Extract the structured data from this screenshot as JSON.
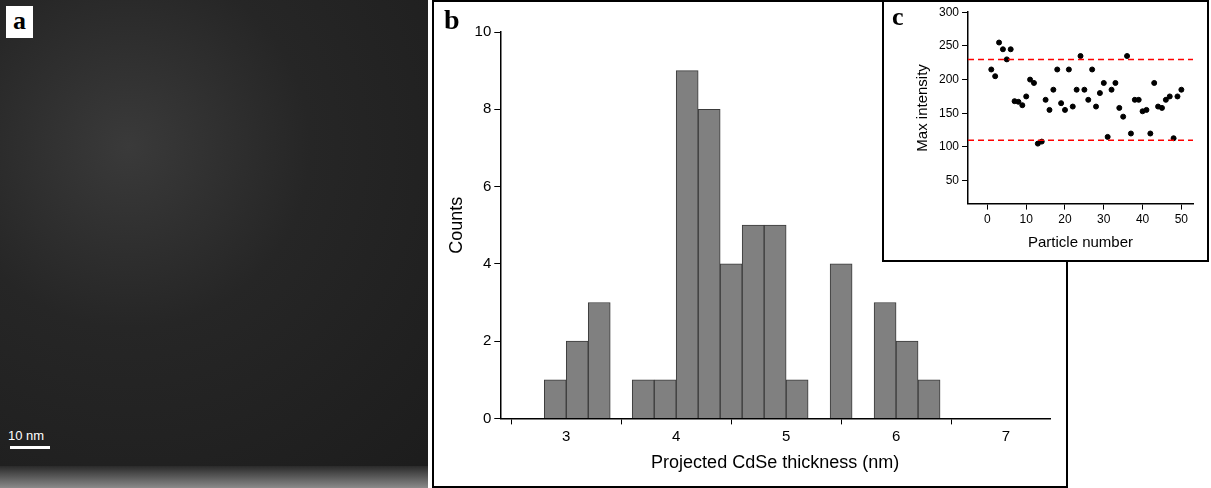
{
  "image_panel": {
    "panel_label": "a",
    "scale_bar": "10 nm"
  },
  "chart_data": [
    {
      "panel_label": "b",
      "type": "histogram",
      "x_label": "Projected CdSe thickness (nm)",
      "y_label": "Counts",
      "bins": [
        2.8,
        3.0,
        3.2,
        3.4,
        3.6,
        3.8,
        4.0,
        4.2,
        4.4,
        4.6,
        4.8,
        5.0,
        5.2,
        5.4,
        5.6,
        5.8,
        6.0,
        6.2,
        6.4
      ],
      "counts": [
        1,
        2,
        3,
        0,
        1,
        1,
        9,
        8,
        4,
        5,
        5,
        1,
        0,
        4,
        0,
        3,
        2,
        1
      ],
      "color": "#808080",
      "xlim": [
        2.4,
        7.4
      ],
      "xticks": [
        3,
        4,
        5,
        6,
        7
      ],
      "ylim": [
        0,
        10
      ],
      "yticks": [
        0,
        2,
        4,
        6,
        8,
        10
      ],
      "grid": false
    },
    {
      "panel_label": "c",
      "type": "scatter",
      "x_label": "Particle number",
      "y_label": "Max intensity",
      "x": [
        1,
        2,
        3,
        4,
        5,
        6,
        7,
        8,
        9,
        10,
        11,
        12,
        13,
        14,
        15,
        16,
        17,
        18,
        19,
        20,
        21,
        22,
        23,
        24,
        25,
        26,
        27,
        28,
        29,
        30,
        31,
        32,
        33,
        34,
        35,
        36,
        37,
        38,
        39,
        40,
        41,
        42,
        43,
        44,
        45,
        46,
        47,
        48,
        49,
        50
      ],
      "values": [
        215,
        205,
        255,
        245,
        230,
        245,
        168,
        167,
        162,
        175,
        200,
        195,
        105,
        108,
        170,
        155,
        185,
        215,
        165,
        155,
        215,
        160,
        185,
        235,
        185,
        170,
        215,
        160,
        180,
        195,
        115,
        185,
        195,
        158,
        145,
        235,
        120,
        170,
        170,
        153,
        155,
        120,
        195,
        160,
        158,
        170,
        175,
        113,
        175,
        185
      ],
      "color": "#000000",
      "marker": "circle",
      "xlim": [
        -5,
        53
      ],
      "xticks": [
        0,
        10,
        20,
        30,
        40,
        50
      ],
      "ylim": [
        16,
        300
      ],
      "yticks": [
        50,
        100,
        150,
        200,
        250,
        300
      ],
      "grid": false,
      "reference_lines": {
        "values": [
          230,
          110
        ],
        "color": "#ff0000",
        "line_style": "dashed"
      }
    }
  ]
}
